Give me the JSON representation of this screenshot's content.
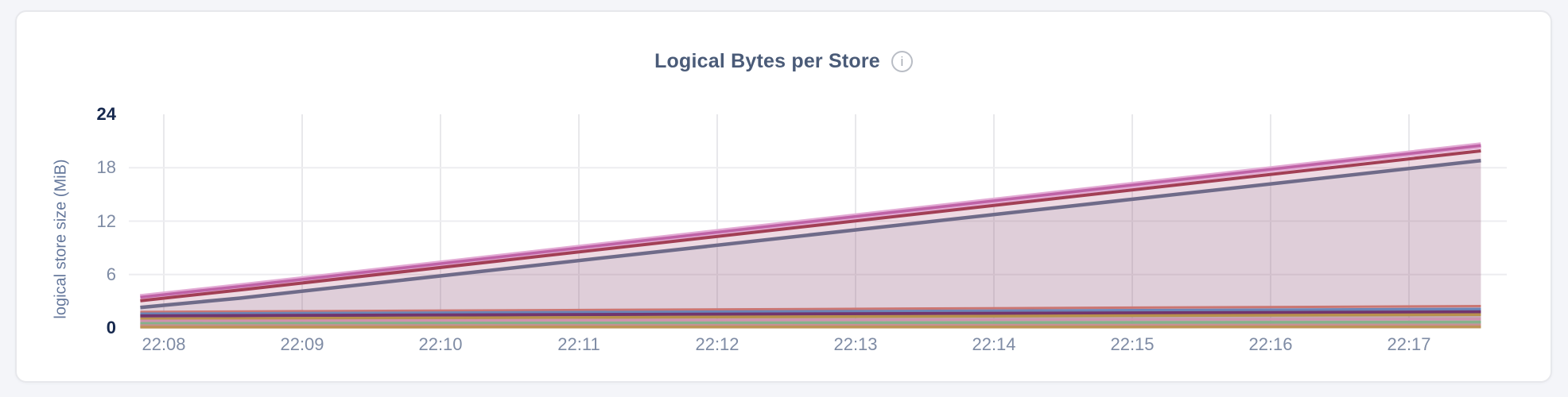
{
  "card": {
    "title": "Logical Bytes per Store",
    "info_icon_glyph": "i"
  },
  "colors": {
    "page_background": "#f4f5f9",
    "card_background": "#ffffff",
    "card_border": "#e7e8ec",
    "title_text": "#4a5b78",
    "axis_title_text": "#64779b",
    "tick_text": "#7e8ba4",
    "tick_text_bold": "#17294e",
    "gridline_vertical": "#e8e8eb",
    "gridline_horizontal": "#ededf0"
  },
  "chart_data": {
    "type": "area",
    "title": "Logical Bytes per Store",
    "xlabel": "",
    "ylabel": "logical store size (MiB)",
    "ylim": [
      0,
      24
    ],
    "y_ticks": [
      0,
      6,
      12,
      18,
      24
    ],
    "y_gridlines": [
      6,
      12,
      18
    ],
    "x_tick_labels": [
      "22:08",
      "22:09",
      "22:10",
      "22:11",
      "22:12",
      "22:13",
      "22:14",
      "22:15",
      "22:16",
      "22:17"
    ],
    "x_unit": "minutes_after_22:08",
    "x_data_range": [
      -0.17,
      9.52
    ],
    "grid": true,
    "legend_position": "none",
    "fill_opacity": 0.11,
    "series": [
      {
        "name": "series-1-pink",
        "color": "#bf62a6",
        "halo": "#e3abd5",
        "width": 3.5,
        "points": [
          [
            -0.17,
            3.45
          ],
          [
            0.6,
            4.75
          ],
          [
            9.52,
            20.5
          ]
        ]
      },
      {
        "name": "series-2-maroon",
        "color": "#a23f55",
        "width": 4.0,
        "points": [
          [
            -0.17,
            3.05
          ],
          [
            0.6,
            4.35
          ],
          [
            9.52,
            19.9
          ]
        ]
      },
      {
        "name": "series-3-gray-purple",
        "color": "#6f6b89",
        "width": 4.5,
        "points": [
          [
            -0.17,
            2.3
          ],
          [
            0.55,
            3.35
          ],
          [
            9.52,
            18.8
          ]
        ]
      },
      {
        "name": "series-4-salmon",
        "color": "#cb7672",
        "width": 3.0,
        "points": [
          [
            -0.17,
            1.8
          ],
          [
            9.52,
            2.45
          ]
        ]
      },
      {
        "name": "series-5-blue",
        "color": "#6b85b7",
        "width": 3.5,
        "points": [
          [
            -0.17,
            1.58
          ],
          [
            9.52,
            2.12
          ]
        ]
      },
      {
        "name": "series-6-purple",
        "color": "#71356d",
        "width": 4.0,
        "points": [
          [
            -0.17,
            1.35
          ],
          [
            9.52,
            1.8
          ]
        ]
      },
      {
        "name": "series-7-gold",
        "color": "#b8914d",
        "width": 3.5,
        "points": [
          [
            -0.17,
            1.02
          ],
          [
            9.52,
            1.5
          ]
        ]
      },
      {
        "name": "series-8-mauve",
        "color": "#cf93af",
        "width": 3.0,
        "points": [
          [
            -0.17,
            0.8
          ],
          [
            9.52,
            1.02
          ]
        ]
      },
      {
        "name": "series-9-green",
        "color": "#85b18a",
        "width": 3.5,
        "points": [
          [
            -0.17,
            0.5
          ],
          [
            9.52,
            0.66
          ]
        ]
      },
      {
        "name": "series-10-rose",
        "color": "#c98f93",
        "width": 3.0,
        "points": [
          [
            -0.17,
            0.28
          ],
          [
            9.52,
            0.34
          ]
        ]
      },
      {
        "name": "series-11-tan",
        "color": "#bd9457",
        "width": 3.5,
        "points": [
          [
            -0.17,
            0.09
          ],
          [
            9.52,
            0.11
          ]
        ]
      }
    ]
  }
}
